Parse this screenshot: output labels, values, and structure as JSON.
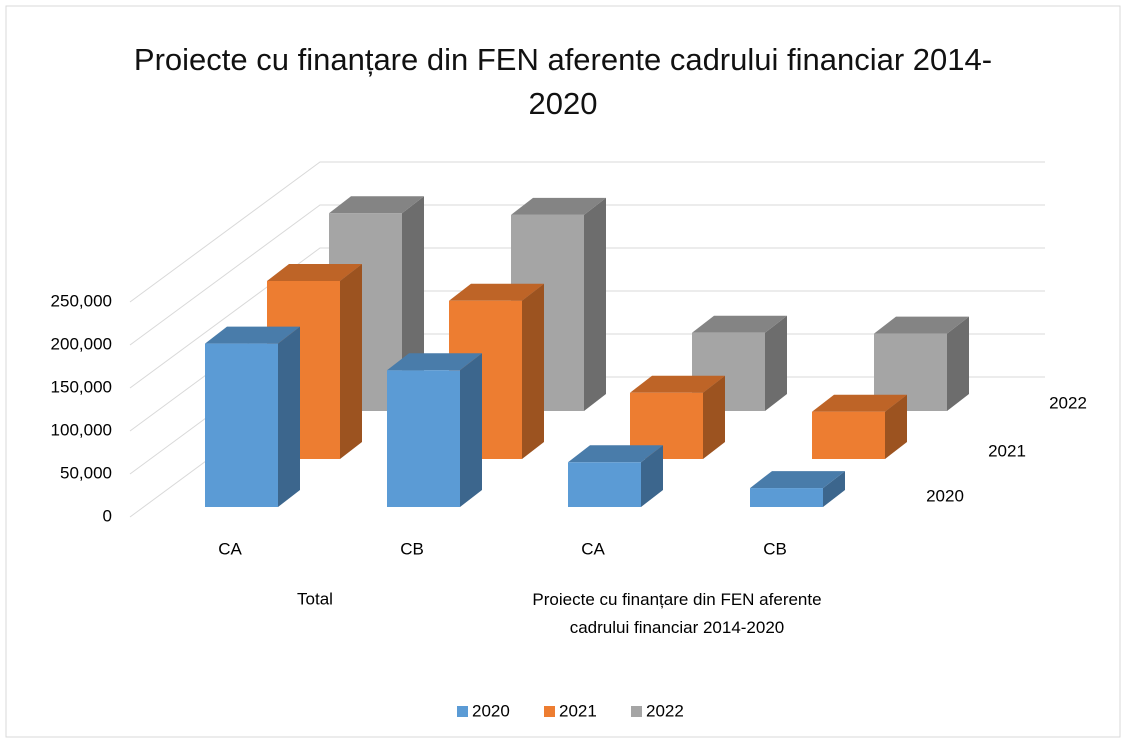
{
  "chart_data": {
    "type": "bar3d",
    "title": "Proiecte cu finanțare din FEN aferente cadrului financiar 2014-2020",
    "categories": [
      "CA",
      "CB",
      "CA",
      "CB"
    ],
    "category_groups": [
      "Total",
      "Proiecte cu finanțare din FEN aferente cadrului financiar 2014-2020"
    ],
    "series": [
      {
        "name": "2020",
        "color": "#5b9bd5",
        "values": [
          190000,
          159000,
          52000,
          22000
        ]
      },
      {
        "name": "2021",
        "color": "#ed7d31",
        "values": [
          207000,
          184000,
          77000,
          55000
        ]
      },
      {
        "name": "2022",
        "color": "#a5a5a5",
        "values": [
          230000,
          228000,
          91000,
          90000
        ]
      }
    ],
    "ylim": [
      0,
      250000
    ],
    "yticks": [
      0,
      {
        "value": 50000,
        "label": "50,000"
      },
      {
        "value": 100000,
        "label": "100,000"
      },
      {
        "value": 150000,
        "label": "150,000"
      },
      {
        "value": 200000,
        "label": "200,000"
      },
      {
        "value": 250000,
        "label": "250,000"
      }
    ],
    "grid": true,
    "legend": "bottom"
  }
}
